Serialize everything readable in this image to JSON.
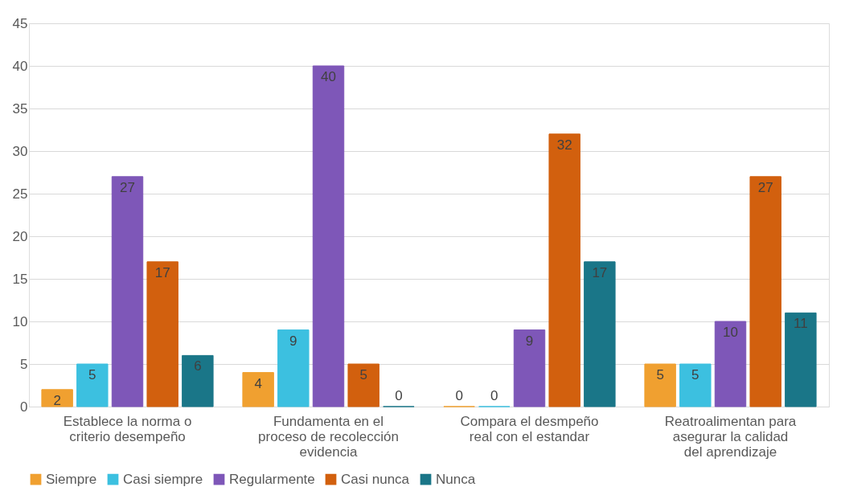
{
  "chart_data": {
    "type": "bar",
    "categories": [
      "Establece la norma o criterio desempeño",
      "Fundamenta en el proceso de recolección evidencia",
      "Compara el desmpeño real con el estandar",
      "Reatroalimentan para asegurar la calidad del aprendizaje"
    ],
    "series": [
      {
        "name": "Siempre",
        "color": "#f0a030",
        "values": [
          2,
          4,
          0,
          5
        ]
      },
      {
        "name": "Casi siempre",
        "color": "#3cc0e0",
        "values": [
          5,
          9,
          0,
          5
        ]
      },
      {
        "name": "Regularmente",
        "color": "#7e57b8",
        "values": [
          27,
          40,
          9,
          10
        ]
      },
      {
        "name": "Casi nunca",
        "color": "#d2600e",
        "values": [
          17,
          5,
          32,
          27
        ]
      },
      {
        "name": "Nunca",
        "color": "#1a7688",
        "values": [
          6,
          0,
          17,
          11
        ]
      }
    ],
    "ylim": [
      0,
      45
    ],
    "yticks": [
      0,
      5,
      10,
      15,
      20,
      25,
      30,
      35,
      40,
      45
    ],
    "grid": "y",
    "legend": "bottom",
    "data_labels": true
  }
}
